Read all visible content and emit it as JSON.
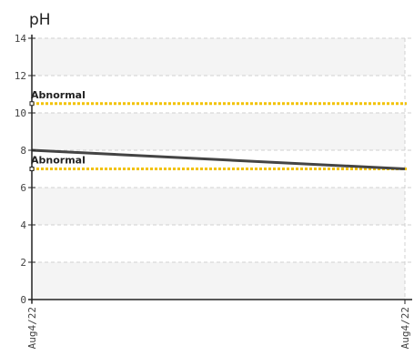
{
  "chart_data": {
    "type": "line",
    "title": "pH",
    "xlabel": "",
    "ylabel": "",
    "ylim": [
      0,
      14
    ],
    "yticks": [
      0,
      2,
      4,
      6,
      8,
      10,
      12,
      14
    ],
    "x_tick_labels": [
      "Aug4/22",
      "Aug4/22"
    ],
    "series": [
      {
        "values": [
          8.0,
          7.0
        ],
        "color": "#444444"
      }
    ],
    "thresholds": [
      {
        "label": "Abnormal",
        "value": 10.5,
        "color": "#f2c200"
      },
      {
        "label": "Abnormal",
        "value": 7.0,
        "color": "#f2c200"
      }
    ],
    "grid": true,
    "band_color": "#f4f4f4"
  }
}
